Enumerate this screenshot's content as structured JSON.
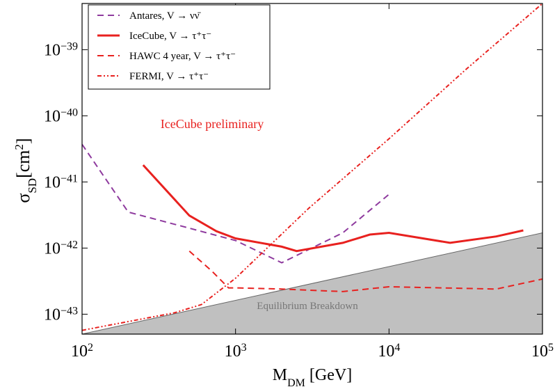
{
  "chart_data": {
    "type": "line",
    "x_label": {
      "main": "M",
      "sub": "DM",
      "rest": " [GeV]"
    },
    "y_label": {
      "main": "σ",
      "sub": "SD",
      "rest": "[cm",
      "sup": "2",
      "end": "]"
    },
    "annotation": "IceCube preliminary",
    "log_x": true,
    "log_y": true,
    "xlim": [
      100,
      100000
    ],
    "ylim": [
      5e-44,
      5e-39
    ],
    "xticks": [
      {
        "value": 100,
        "label": "10",
        "exponent": "2"
      },
      {
        "value": 1000,
        "label": "10",
        "exponent": "3"
      },
      {
        "value": 10000,
        "label": "10",
        "exponent": "4"
      },
      {
        "value": 100000,
        "label": "10",
        "exponent": "5"
      }
    ],
    "yticks": [
      {
        "value": 1e-43,
        "label": "10",
        "exponent": "−43"
      },
      {
        "value": 1e-42,
        "label": "10",
        "exponent": "−42"
      },
      {
        "value": 1e-41,
        "label": "10",
        "exponent": "−41"
      },
      {
        "value": 1e-40,
        "label": "10",
        "exponent": "−40"
      },
      {
        "value": 1e-39,
        "label": "10",
        "exponent": "−39"
      }
    ],
    "legend_position": "upper left",
    "series": [
      {
        "name": "Antares, V → νν̄",
        "color": "#8e3a9e",
        "style": "dashed",
        "x": [
          100,
          200,
          500,
          1000,
          2000,
          5000,
          10000
        ],
        "values": [
          3.7e-41,
          3.5e-42,
          2e-42,
          1.3e-42,
          6e-43,
          1.7e-42,
          6.5e-42
        ]
      },
      {
        "name": "IceCube, V → τ⁺τ⁻",
        "color": "#e8211f",
        "style": "solid",
        "x": [
          250,
          500,
          750,
          1000,
          2000,
          2500,
          5000,
          7500,
          10000,
          25000,
          50000,
          75000
        ],
        "values": [
          1.8e-41,
          3.1e-42,
          1.8e-42,
          1.4e-42,
          1.05e-42,
          9e-43,
          1.2e-42,
          1.6e-42,
          1.7e-42,
          1.2e-42,
          1.5e-42,
          1.85e-42
        ]
      },
      {
        "name": "HAWC 4 year, V → τ⁺τ⁻",
        "color": "#e8211f",
        "style": "dashed",
        "x": [
          500,
          700,
          900,
          1000,
          2000,
          5000,
          10000,
          50000,
          100000
        ],
        "values": [
          9e-43,
          4.5e-43,
          2.5e-43,
          2.5e-43,
          2.4e-43,
          2.2e-43,
          2.6e-43,
          2.4e-43,
          3.4e-43
        ]
      },
      {
        "name": "FERMI, V → τ⁺τ⁻",
        "color": "#e8211f",
        "style": "dashdot",
        "x": [
          100,
          400,
          600,
          1000,
          3000,
          10000,
          31623,
          100000
        ],
        "values": [
          5.7e-44,
          1.05e-43,
          1.4e-43,
          3.5e-43,
          4e-42,
          4.5e-41,
          5e-40,
          5e-39
        ]
      }
    ],
    "shaded_region": {
      "label": "Equilibrium Breakdown",
      "color": "#c0c0c0",
      "x": [
        100,
        100000
      ],
      "values": [
        5e-44,
        1.7e-42
      ]
    }
  }
}
